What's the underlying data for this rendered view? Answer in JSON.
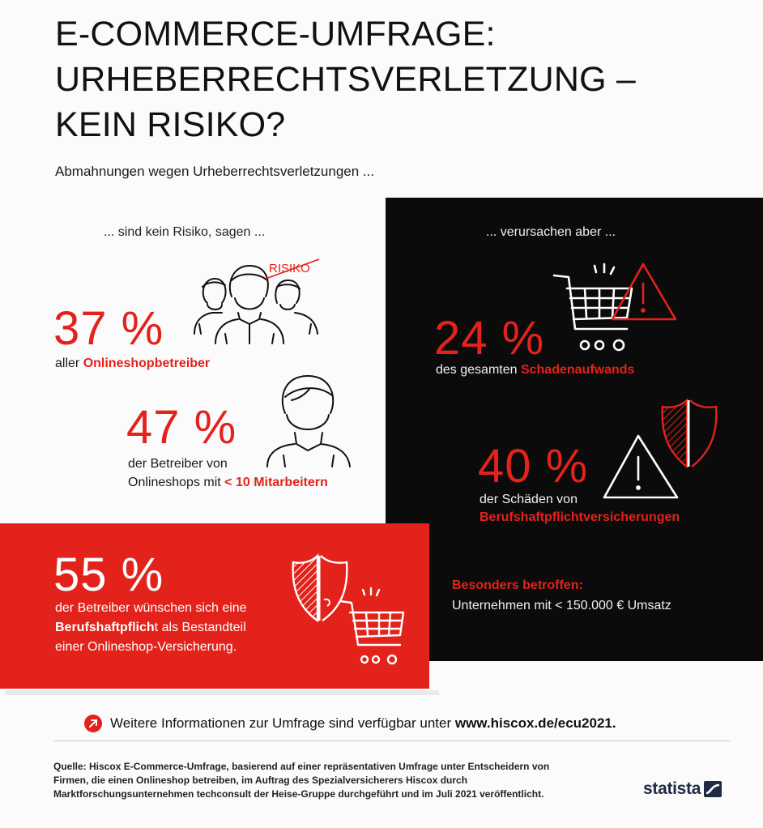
{
  "title": {
    "line1": "E-COMMERCE-UMFRAGE:",
    "line2": "URHEBERRECHTSVERLETZUNG –",
    "line3": "KEIN RISIKO?"
  },
  "subtitle": "Abmahnungen wegen Urheberrechtsverletzungen ...",
  "left_column": {
    "header": "... sind kein Risiko, sagen ...",
    "icon_label": "RISIKO",
    "stat1": {
      "value": "37 %",
      "text_prefix": "aller ",
      "text_highlight": "Onlineshopbetreiber"
    },
    "stat2": {
      "value": "47 %",
      "line1": "der Betreiber von",
      "line2_prefix": "Onlineshops mit ",
      "line2_highlight": "< 10 Mitarbeitern"
    }
  },
  "right_column": {
    "header": "... verursachen aber ...",
    "stat1": {
      "value": "24 %",
      "text_prefix": "des gesamten ",
      "text_highlight": "Schadenaufwands"
    },
    "stat2": {
      "value": "40 %",
      "line1": "der Schäden von",
      "line2_highlight": "Berufshaftpflichtversicherungen"
    },
    "note_heading": "Besonders betroffen:",
    "note_text": "Unternehmen mit < 150.000 € Umsatz"
  },
  "red_box": {
    "value": "55 %",
    "line1": "der Betreiber wünschen sich eine",
    "line2_bold": "Berufshaftpflich",
    "line2_rest": "t als Bestandteil",
    "line3": "einer Onlineshop-Versicherung."
  },
  "info": {
    "prefix": "Weitere Informationen zur Umfrage sind verfügbar unter ",
    "link": "www.hiscox.de/ecu2021."
  },
  "source": "Quelle: Hiscox E-Commerce-Umfrage, basierend auf einer repräsentativen Umfrage unter Entscheidern von Firmen, die einen Onlineshop betreiben, im Auftrag des Spezialversicherers Hiscox durch Marktforschungsunternehmen techconsult der Heise-Gruppe durchgeführt und im Juli 2021 veröffentlicht.",
  "logo": "statista",
  "colors": {
    "accent": "#e3221b",
    "dark_panel": "#0b0b0b",
    "text": "#111111"
  },
  "icons": [
    "people-group-icon",
    "person-icon",
    "shopping-cart-icon",
    "warning-triangle-icon",
    "shield-icon",
    "arrow-bullet-icon",
    "statista-logo-icon"
  ]
}
